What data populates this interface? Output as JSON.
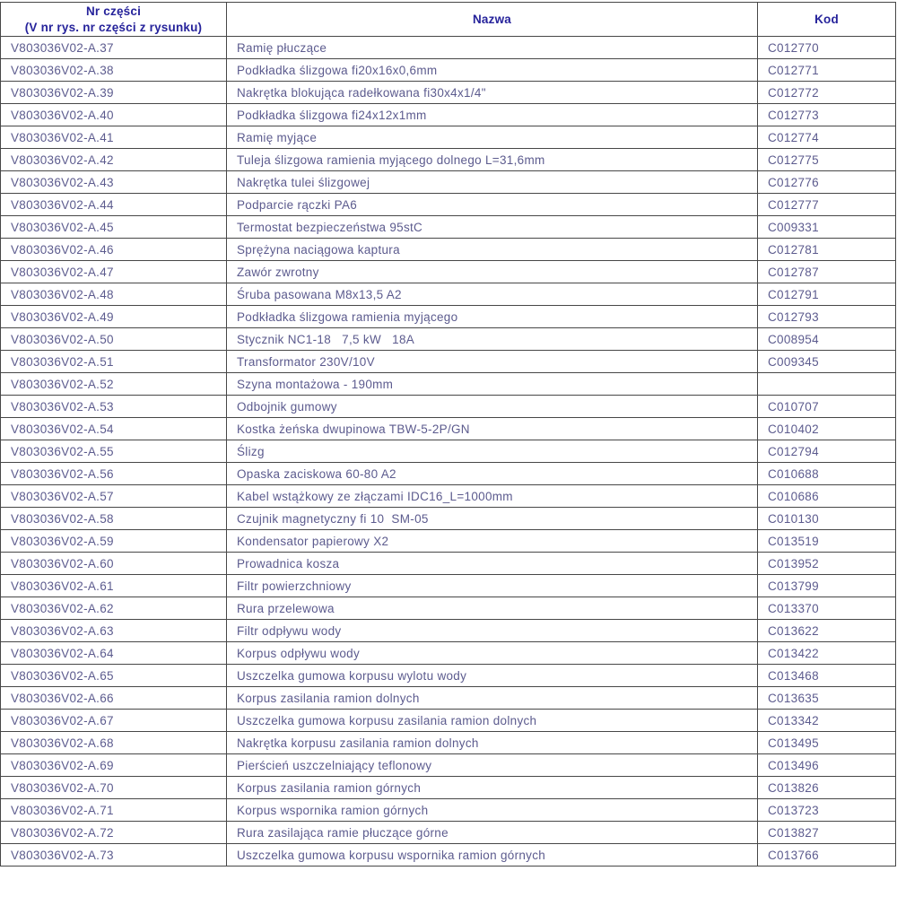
{
  "table": {
    "header": {
      "nr_line1": "Nr części",
      "nr_line2": "(V nr rys. nr części z rysunku)",
      "nazwa": "Nazwa",
      "kod": "Kod"
    },
    "rows": [
      {
        "nr": "V803036V02-A.37",
        "nazwa": "Ramię płuczące",
        "kod": "C012770"
      },
      {
        "nr": "V803036V02-A.38",
        "nazwa": "Podkładka ślizgowa fi20x16x0,6mm",
        "kod": "C012771"
      },
      {
        "nr": "V803036V02-A.39",
        "nazwa": "Nakrętka blokująca radełkowana fi30x4x1/4\"",
        "kod": "C012772"
      },
      {
        "nr": "V803036V02-A.40",
        "nazwa": "Podkładka ślizgowa fi24x12x1mm",
        "kod": "C012773"
      },
      {
        "nr": "V803036V02-A.41",
        "nazwa": "Ramię myjące",
        "kod": "C012774"
      },
      {
        "nr": "V803036V02-A.42",
        "nazwa": "Tuleja ślizgowa ramienia myjącego dolnego L=31,6mm",
        "kod": "C012775"
      },
      {
        "nr": "V803036V02-A.43",
        "nazwa": "Nakrętka tulei ślizgowej",
        "kod": "C012776"
      },
      {
        "nr": "V803036V02-A.44",
        "nazwa": "Podparcie rączki PA6",
        "kod": "C012777"
      },
      {
        "nr": "V803036V02-A.45",
        "nazwa": "Termostat bezpieczeństwa 95stC",
        "kod": "C009331"
      },
      {
        "nr": "V803036V02-A.46",
        "nazwa": "Sprężyna naciągowa kaptura",
        "kod": "C012781"
      },
      {
        "nr": "V803036V02-A.47",
        "nazwa": "Zawór zwrotny",
        "kod": "C012787"
      },
      {
        "nr": "V803036V02-A.48",
        "nazwa": "Śruba pasowana M8x13,5 A2",
        "kod": "C012791"
      },
      {
        "nr": "V803036V02-A.49",
        "nazwa": "Podkładka ślizgowa ramienia myjącego",
        "kod": "C012793"
      },
      {
        "nr": "V803036V02-A.50",
        "nazwa": "Stycznik NC1-18   7,5 kW   18A",
        "kod": "C008954"
      },
      {
        "nr": "V803036V02-A.51",
        "nazwa": "Transformator 230V/10V",
        "kod": "C009345"
      },
      {
        "nr": "V803036V02-A.52",
        "nazwa": "Szyna montażowa - 190mm",
        "kod": ""
      },
      {
        "nr": "V803036V02-A.53",
        "nazwa": "Odbojnik gumowy",
        "kod": "C010707"
      },
      {
        "nr": "V803036V02-A.54",
        "nazwa": "Kostka żeńska dwupinowa TBW-5-2P/GN",
        "kod": "C010402"
      },
      {
        "nr": "V803036V02-A.55",
        "nazwa": "Ślizg",
        "kod": "C012794"
      },
      {
        "nr": "V803036V02-A.56",
        "nazwa": "Opaska zaciskowa 60-80 A2",
        "kod": "C010688"
      },
      {
        "nr": "V803036V02-A.57",
        "nazwa": "Kabel wstążkowy ze złączami IDC16_L=1000mm",
        "kod": "C010686"
      },
      {
        "nr": "V803036V02-A.58",
        "nazwa": "Czujnik magnetyczny fi 10  SM-05",
        "kod": "C010130"
      },
      {
        "nr": "V803036V02-A.59",
        "nazwa": "Kondensator papierowy X2",
        "kod": "C013519"
      },
      {
        "nr": "V803036V02-A.60",
        "nazwa": "Prowadnica kosza",
        "kod": "C013952"
      },
      {
        "nr": "V803036V02-A.61",
        "nazwa": "Filtr powierzchniowy",
        "kod": "C013799"
      },
      {
        "nr": "V803036V02-A.62",
        "nazwa": "Rura przelewowa",
        "kod": "C013370"
      },
      {
        "nr": "V803036V02-A.63",
        "nazwa": "Filtr odpływu wody",
        "kod": "C013622"
      },
      {
        "nr": "V803036V02-A.64",
        "nazwa": "Korpus odpływu wody",
        "kod": "C013422"
      },
      {
        "nr": "V803036V02-A.65",
        "nazwa": "Uszczelka gumowa korpusu wylotu wody",
        "kod": "C013468"
      },
      {
        "nr": "V803036V02-A.66",
        "nazwa": "Korpus zasilania ramion dolnych",
        "kod": "C013635"
      },
      {
        "nr": "V803036V02-A.67",
        "nazwa": "Uszczelka gumowa korpusu zasilania ramion dolnych",
        "kod": "C013342"
      },
      {
        "nr": "V803036V02-A.68",
        "nazwa": "Nakrętka korpusu zasilania ramion dolnych",
        "kod": "C013495"
      },
      {
        "nr": "V803036V02-A.69",
        "nazwa": "Pierścień uszczelniający teflonowy",
        "kod": "C013496"
      },
      {
        "nr": "V803036V02-A.70",
        "nazwa": "Korpus zasilania ramion górnych",
        "kod": "C013826"
      },
      {
        "nr": "V803036V02-A.71",
        "nazwa": "Korpus wspornika ramion górnych",
        "kod": "C013723"
      },
      {
        "nr": "V803036V02-A.72",
        "nazwa": "Rura zasilająca ramie płuczące górne",
        "kod": "C013827"
      },
      {
        "nr": "V803036V02-A.73",
        "nazwa": "Uszczelka gumowa korpusu wspornika ramion górnych",
        "kod": "C013766"
      }
    ],
    "colors": {
      "header_text": "#26239b",
      "body_text": "#5c5b8e",
      "border": "#474747",
      "background": "#ffffff"
    }
  }
}
